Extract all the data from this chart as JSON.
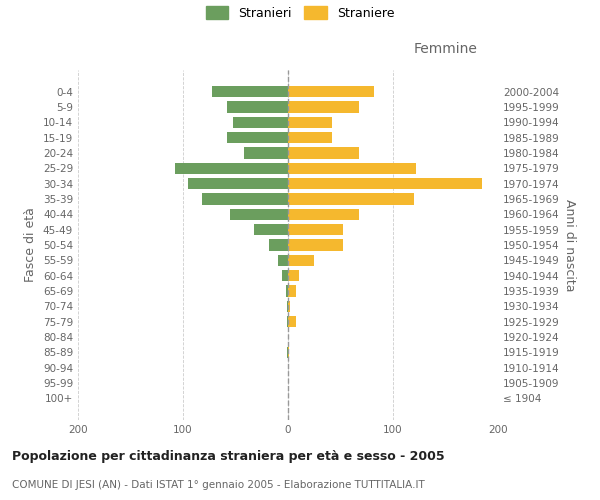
{
  "age_groups": [
    "100+",
    "95-99",
    "90-94",
    "85-89",
    "80-84",
    "75-79",
    "70-74",
    "65-69",
    "60-64",
    "55-59",
    "50-54",
    "45-49",
    "40-44",
    "35-39",
    "30-34",
    "25-29",
    "20-24",
    "15-19",
    "10-14",
    "5-9",
    "0-4"
  ],
  "birth_years": [
    "≤ 1904",
    "1905-1909",
    "1910-1914",
    "1915-1919",
    "1920-1924",
    "1925-1929",
    "1930-1934",
    "1935-1939",
    "1940-1944",
    "1945-1949",
    "1950-1954",
    "1955-1959",
    "1960-1964",
    "1965-1969",
    "1970-1974",
    "1975-1979",
    "1980-1984",
    "1985-1989",
    "1990-1994",
    "1995-1999",
    "2000-2004"
  ],
  "males": [
    0,
    0,
    0,
    1,
    0,
    1,
    1,
    2,
    6,
    10,
    18,
    32,
    55,
    82,
    95,
    108,
    42,
    58,
    52,
    58,
    72
  ],
  "females": [
    0,
    0,
    0,
    1,
    0,
    8,
    2,
    8,
    10,
    25,
    52,
    52,
    68,
    120,
    185,
    122,
    68,
    42,
    42,
    68,
    82
  ],
  "male_color": "#6b9e5e",
  "female_color": "#f5b82e",
  "background_color": "#ffffff",
  "grid_color": "#cccccc",
  "center_line_color": "#999999",
  "title": "Popolazione per cittadinanza straniera per età e sesso - 2005",
  "subtitle": "COMUNE DI JESI (AN) - Dati ISTAT 1° gennaio 2005 - Elaborazione TUTTITALIA.IT",
  "label_femmine": "Femmine",
  "ylabel_left": "Fasce di età",
  "ylabel_right": "Anni di nascita",
  "legend_males": "Stranieri",
  "legend_females": "Straniere",
  "xlim": 200,
  "bar_height": 0.75,
  "tick_fontsize": 7.5,
  "label_fontsize": 9,
  "title_fontsize": 9,
  "subtitle_fontsize": 7.5
}
